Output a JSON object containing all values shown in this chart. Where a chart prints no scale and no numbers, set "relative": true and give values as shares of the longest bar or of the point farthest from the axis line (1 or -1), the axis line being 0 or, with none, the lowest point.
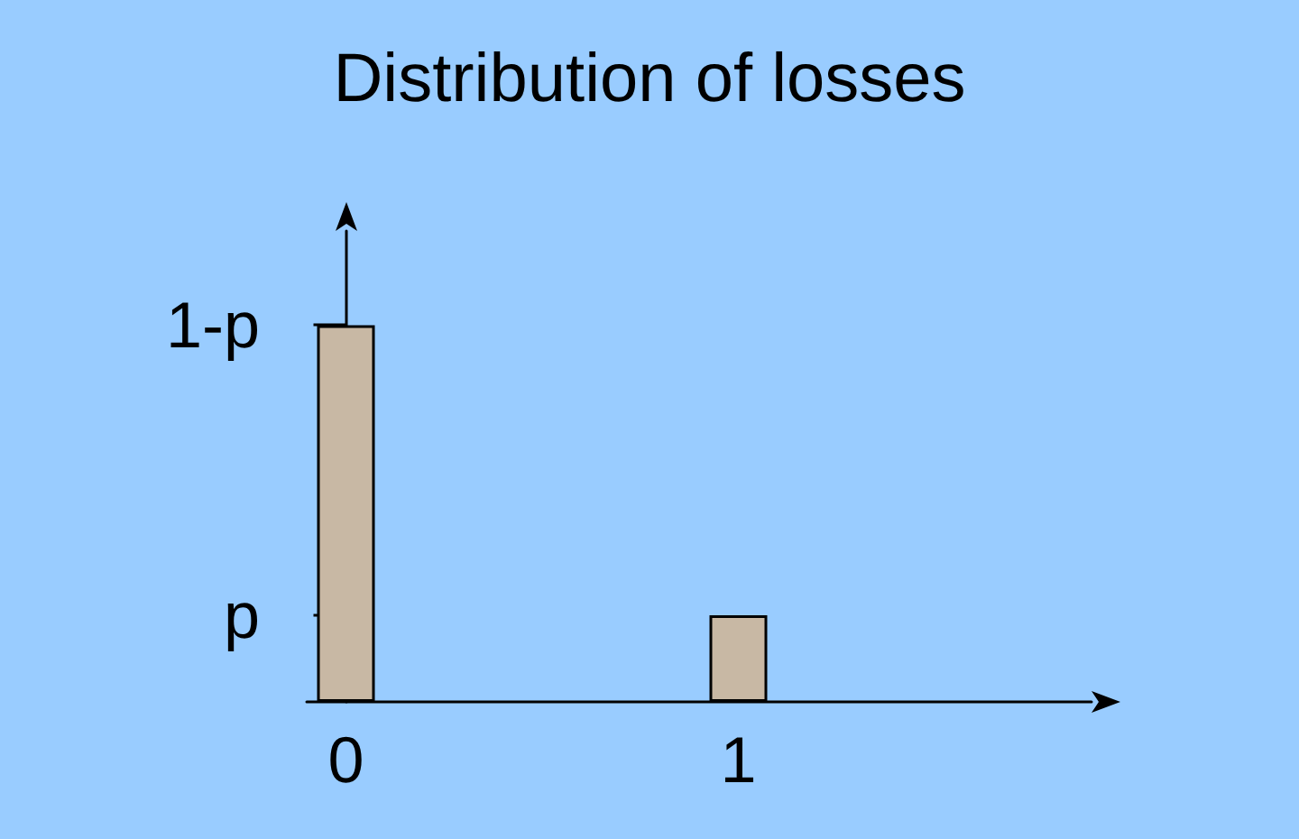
{
  "chart_data": {
    "type": "bar",
    "title": "Distribution of losses",
    "x": [
      0,
      1
    ],
    "values": [
      1,
      0.23
    ],
    "color": "#c8b8a4",
    "relative": true,
    "xlim": [
      -0.1,
      1.9
    ],
    "xticks": [
      0,
      1
    ],
    "annotations": [
      "1-p",
      "p"
    ]
  }
}
